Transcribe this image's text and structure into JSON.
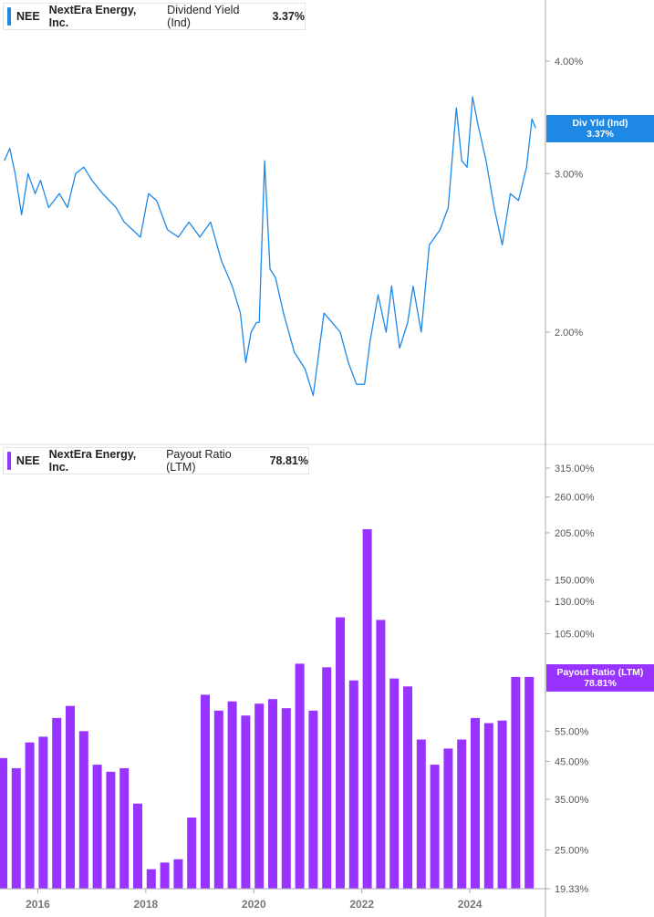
{
  "colors": {
    "yield_line": "#1e88e5",
    "payout_bar": "#9933ff",
    "axis": "#aaaaaa",
    "grid_text": "#555555",
    "x_text": "#777777"
  },
  "legend_top": {
    "ticker": "NEE",
    "company": "NextEra Energy, Inc.",
    "metric": "Dividend Yield (Ind)",
    "value": "3.37%"
  },
  "legend_bottom": {
    "ticker": "NEE",
    "company": "NextEra Energy, Inc.",
    "metric": "Payout Ratio (LTM)",
    "value": "78.81%"
  },
  "tag_top": {
    "label": "Div Yld (Ind)",
    "value": "3.37%"
  },
  "tag_bottom": {
    "label": "Payout Ratio (LTM)",
    "value": "78.81%"
  },
  "chart_data": [
    {
      "type": "line",
      "series": [
        {
          "name": "Dividend Yield (Ind)"
        }
      ],
      "y_scale": "log",
      "y_ticks": [
        {
          "label": "4.00%",
          "value": 4.0
        },
        {
          "label": "3.00%",
          "value": 3.0
        },
        {
          "label": "2.00%",
          "value": 2.0
        }
      ],
      "points": [
        [
          2015.38,
          3.1
        ],
        [
          2015.48,
          3.2
        ],
        [
          2015.58,
          3.0
        ],
        [
          2015.7,
          2.7
        ],
        [
          2015.82,
          3.0
        ],
        [
          2015.95,
          2.85
        ],
        [
          2016.05,
          2.95
        ],
        [
          2016.2,
          2.75
        ],
        [
          2016.4,
          2.85
        ],
        [
          2016.55,
          2.75
        ],
        [
          2016.7,
          3.0
        ],
        [
          2016.85,
          3.05
        ],
        [
          2017.0,
          2.95
        ],
        [
          2017.2,
          2.85
        ],
        [
          2017.45,
          2.75
        ],
        [
          2017.6,
          2.65
        ],
        [
          2017.75,
          2.6
        ],
        [
          2017.9,
          2.55
        ],
        [
          2018.05,
          2.85
        ],
        [
          2018.2,
          2.8
        ],
        [
          2018.4,
          2.6
        ],
        [
          2018.6,
          2.55
        ],
        [
          2018.8,
          2.65
        ],
        [
          2019.0,
          2.55
        ],
        [
          2019.2,
          2.65
        ],
        [
          2019.4,
          2.4
        ],
        [
          2019.6,
          2.25
        ],
        [
          2019.75,
          2.1
        ],
        [
          2019.85,
          1.85
        ],
        [
          2019.95,
          2.0
        ],
        [
          2020.05,
          2.05
        ],
        [
          2020.1,
          2.05
        ],
        [
          2020.2,
          3.1
        ],
        [
          2020.3,
          2.35
        ],
        [
          2020.4,
          2.3
        ],
        [
          2020.55,
          2.1
        ],
        [
          2020.75,
          1.9
        ],
        [
          2020.95,
          1.82
        ],
        [
          2021.1,
          1.7
        ],
        [
          2021.3,
          2.1
        ],
        [
          2021.45,
          2.05
        ],
        [
          2021.6,
          2.0
        ],
        [
          2021.75,
          1.85
        ],
        [
          2021.9,
          1.75
        ],
        [
          2022.05,
          1.75
        ],
        [
          2022.15,
          1.95
        ],
        [
          2022.3,
          2.2
        ],
        [
          2022.45,
          2.0
        ],
        [
          2022.55,
          2.25
        ],
        [
          2022.7,
          1.92
        ],
        [
          2022.85,
          2.05
        ],
        [
          2022.95,
          2.25
        ],
        [
          2023.1,
          2.0
        ],
        [
          2023.25,
          2.5
        ],
        [
          2023.45,
          2.6
        ],
        [
          2023.6,
          2.75
        ],
        [
          2023.75,
          3.55
        ],
        [
          2023.85,
          3.1
        ],
        [
          2023.95,
          3.05
        ],
        [
          2024.05,
          3.65
        ],
        [
          2024.15,
          3.4
        ],
        [
          2024.3,
          3.1
        ],
        [
          2024.45,
          2.75
        ],
        [
          2024.6,
          2.5
        ],
        [
          2024.75,
          2.85
        ],
        [
          2024.9,
          2.8
        ],
        [
          2025.05,
          3.05
        ],
        [
          2025.15,
          3.45
        ],
        [
          2025.22,
          3.37
        ]
      ],
      "x_ticks": [
        "2016",
        "2018",
        "2020",
        "2022",
        "2024"
      ]
    },
    {
      "type": "bar",
      "series": [
        {
          "name": "Payout Ratio (LTM)"
        }
      ],
      "y_scale": "log",
      "y_ticks": [
        {
          "label": "315.00%",
          "value": 315
        },
        {
          "label": "260.00%",
          "value": 260
        },
        {
          "label": "205.00%",
          "value": 205
        },
        {
          "label": "150.00%",
          "value": 150
        },
        {
          "label": "130.00%",
          "value": 130
        },
        {
          "label": "105.00%",
          "value": 105
        },
        {
          "label": "55.00%",
          "value": 55
        },
        {
          "label": "45.00%",
          "value": 45
        },
        {
          "label": "35.00%",
          "value": 35
        },
        {
          "label": "25.00%",
          "value": 25
        },
        {
          "label": "19.33%",
          "value": 19.33
        }
      ],
      "x": [
        2015.35,
        2015.6,
        2015.85,
        2016.1,
        2016.35,
        2016.6,
        2016.85,
        2017.1,
        2017.35,
        2017.6,
        2017.85,
        2018.1,
        2018.35,
        2018.6,
        2018.85,
        2019.1,
        2019.35,
        2019.6,
        2019.85,
        2020.1,
        2020.35,
        2020.6,
        2020.85,
        2021.1,
        2021.35,
        2021.6,
        2021.85,
        2022.1,
        2022.35,
        2022.6,
        2022.85,
        2023.1,
        2023.35,
        2023.6,
        2023.85,
        2024.1,
        2024.35,
        2024.6,
        2024.85,
        2025.1
      ],
      "values": [
        46,
        43,
        51,
        53,
        60,
        65,
        55,
        44,
        42,
        43,
        34,
        22,
        23,
        23.5,
        31,
        70,
        63,
        67,
        61,
        66,
        68,
        64,
        86,
        63,
        84,
        117,
        77,
        210,
        115,
        78,
        74,
        52,
        44,
        49,
        52,
        60,
        58,
        59,
        78.81,
        78.81
      ],
      "x_ticks": [
        "2016",
        "2018",
        "2020",
        "2022",
        "2024"
      ]
    }
  ]
}
